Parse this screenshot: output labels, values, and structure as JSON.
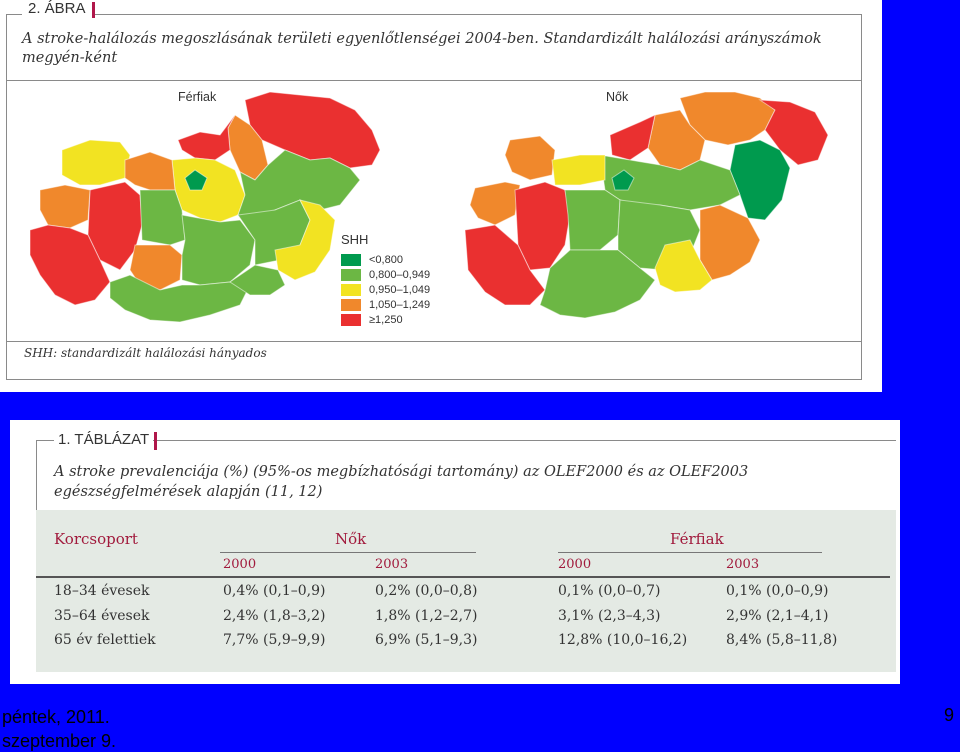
{
  "figure": {
    "tag": "2. ÁBRA",
    "title": "A stroke-halálozás megoszlásának területi egyenlőtlenségei 2004-ben. Standardizált halálozási arányszámok megyén-ként",
    "map_left_title": "Férfiak",
    "map_right_title": "Nők",
    "footnote": "SHH: standardizált halálozási hányados",
    "legend": {
      "title": "SHH",
      "items": [
        {
          "label": "<0,800",
          "color": "#009a4e"
        },
        {
          "label": "0,800–0,949",
          "color": "#6cb744"
        },
        {
          "label": "0,950–1,049",
          "color": "#f2e322"
        },
        {
          "label": "1,050–1,249",
          "color": "#f0882c"
        },
        {
          "label": "≥1,250",
          "color": "#ea3030"
        }
      ]
    }
  },
  "table": {
    "tag": "1. TÁBLÁZAT",
    "title": "A stroke prevalenciája (%) (95%-os megbízhatósági tartomány) az OLEF2000 és az OLEF2003 egészségfelmérések alapján (11, 12)",
    "header_group": "Korcsoport",
    "group_women": "Nők",
    "group_men": "Férfiak",
    "years": [
      "2000",
      "2003",
      "2000",
      "2003"
    ],
    "rows": [
      {
        "label": "18–34 évesek",
        "values": [
          "0,4% (0,1–0,9)",
          "0,2% (0,0–0,8)",
          "0,1% (0,0–0,7)",
          "0,1% (0,0–0,9)"
        ]
      },
      {
        "label": "35–64 évesek",
        "values": [
          "2,4% (1,8–3,2)",
          "1,8% (1,2–2,7)",
          "3,1% (2,3–4,3)",
          "2,9% (2,1–4,1)"
        ]
      },
      {
        "label": "65 év felettiek",
        "values": [
          "7,7% (5,9–9,9)",
          "6,9% (5,1–9,3)",
          "12,8% (10,0–16,2)",
          "8,4% (5,8–11,8)"
        ]
      }
    ]
  },
  "footer": {
    "date_line1": "péntek, 2011.",
    "date_line2": "szeptember 9.",
    "page_number": "9"
  }
}
